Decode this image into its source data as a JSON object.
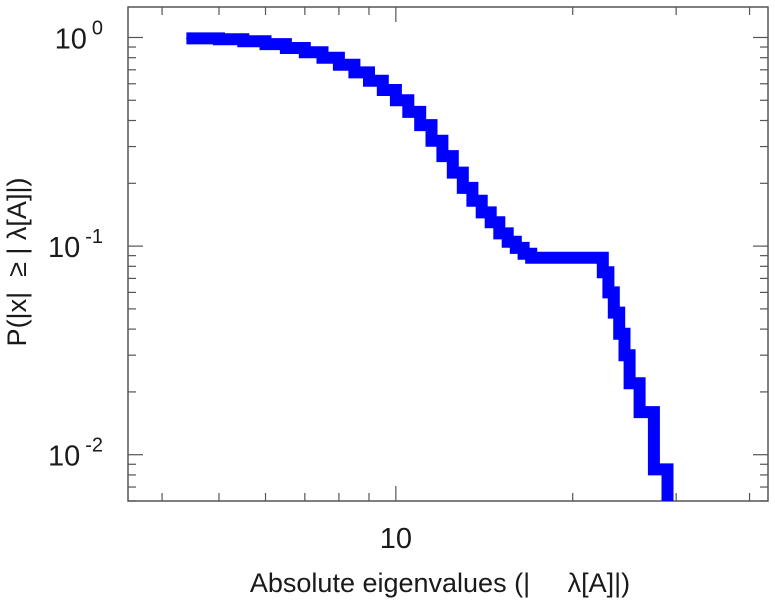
{
  "chart_data": {
    "type": "line",
    "title": "",
    "xlabel": "Absolute eigenvalues (|     λ[A]|)",
    "ylabel": "P(|x|  ≥ | λ[A]|)",
    "x_scale": "log",
    "y_scale": "log",
    "xlim": [
      3.5,
      43
    ],
    "ylim": [
      0.006,
      1.4
    ],
    "grid": false,
    "legend": "none",
    "x_tick_labels": [
      {
        "value": 10,
        "base": "10",
        "exp": ""
      }
    ],
    "y_tick_labels": [
      {
        "value": 1,
        "base": "10",
        "exp": "0"
      },
      {
        "value": 0.1,
        "base": "10",
        "exp": "-1"
      },
      {
        "value": 0.01,
        "base": "10",
        "exp": "-2"
      }
    ],
    "series": [
      {
        "color": "#0000ff",
        "x": [
          4.4,
          5.0,
          5.5,
          6.0,
          6.5,
          7.0,
          7.5,
          8.0,
          8.5,
          9.0,
          9.5,
          10.0,
          10.5,
          11.0,
          11.5,
          12.0,
          12.5,
          13.0,
          13.5,
          14.0,
          14.5,
          15.0,
          15.5,
          16.0,
          16.5,
          17.0,
          18.0,
          19.0,
          20.0,
          21.0,
          22.0,
          22.5,
          23.0,
          23.5,
          24.0,
          24.5,
          25.0,
          26.0,
          27.5,
          28.5,
          29.0
        ],
        "y": [
          0.99,
          0.98,
          0.96,
          0.93,
          0.89,
          0.85,
          0.8,
          0.74,
          0.68,
          0.62,
          0.56,
          0.5,
          0.44,
          0.38,
          0.32,
          0.27,
          0.225,
          0.19,
          0.165,
          0.145,
          0.13,
          0.115,
          0.105,
          0.098,
          0.092,
          0.088,
          0.088,
          0.088,
          0.088,
          0.088,
          0.088,
          0.075,
          0.06,
          0.048,
          0.038,
          0.03,
          0.022,
          0.016,
          0.0085,
          0.0085,
          0.006
        ]
      }
    ]
  }
}
